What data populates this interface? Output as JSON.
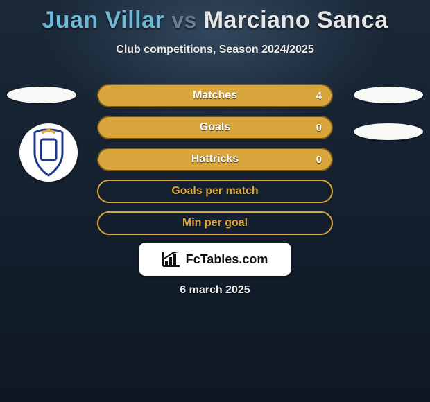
{
  "title": {
    "player1": "Juan Villar",
    "vs": "vs",
    "player2": "Marciano Sanca"
  },
  "subtitle": "Club competitions, Season 2024/2025",
  "rows": [
    {
      "label": "Matches",
      "left": "",
      "right": "4",
      "kind": "a"
    },
    {
      "label": "Goals",
      "left": "",
      "right": "0",
      "kind": "a"
    },
    {
      "label": "Hattricks",
      "left": "",
      "right": "0",
      "kind": "a"
    },
    {
      "label": "Goals per match",
      "left": "",
      "right": "",
      "kind": "b"
    },
    {
      "label": "Min per goal",
      "left": "",
      "right": "",
      "kind": "b"
    }
  ],
  "site_label": "FcTables.com",
  "date": "6 march 2025",
  "colors": {
    "player1": "#6fb8d6",
    "vs": "#6c7c8c",
    "player2": "#e6e6e6",
    "row_fill": "#d9a63d",
    "row_border": "#7a5a18",
    "row_outline": "#d9a63d",
    "bg_top": "#1a2838",
    "bg_bottom": "#0e1824",
    "pill_bg": "#ffffff"
  }
}
